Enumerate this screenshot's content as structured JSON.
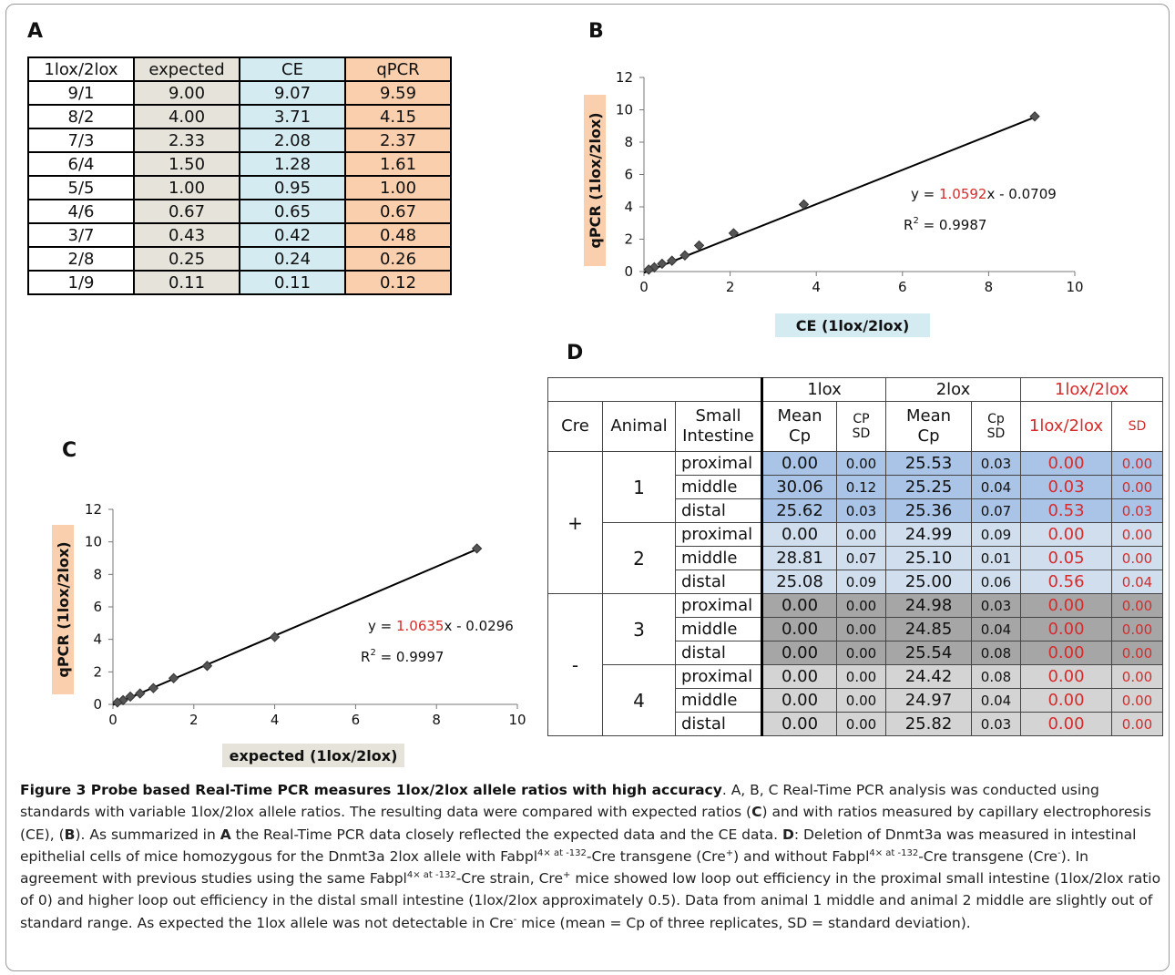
{
  "panels": {
    "a": "A",
    "b": "B",
    "c": "C",
    "d": "D"
  },
  "table_a": {
    "headers": [
      "1lox/2lox",
      "expected",
      "CE",
      "qPCR"
    ],
    "rows": [
      [
        "9/1",
        "9.00",
        "9.07",
        "9.59"
      ],
      [
        "8/2",
        "4.00",
        "3.71",
        "4.15"
      ],
      [
        "7/3",
        "2.33",
        "2.08",
        "2.37"
      ],
      [
        "6/4",
        "1.50",
        "1.28",
        "1.61"
      ],
      [
        "5/5",
        "1.00",
        "0.95",
        "1.00"
      ],
      [
        "4/6",
        "0.67",
        "0.65",
        "0.67"
      ],
      [
        "3/7",
        "0.43",
        "0.42",
        "0.48"
      ],
      [
        "2/8",
        "0.25",
        "0.24",
        "0.26"
      ],
      [
        "1/9",
        "0.11",
        "0.11",
        "0.12"
      ]
    ]
  },
  "chart_data": [
    {
      "type": "scatter",
      "panel": "B",
      "xlabel": "CE (1lox/2lox)",
      "ylabel": "qPCR (1lox/2lox)",
      "xlim": [
        0,
        10
      ],
      "ylim": [
        0,
        12
      ],
      "xticks": [
        "0",
        "2",
        "4",
        "6",
        "8",
        "10"
      ],
      "yticks": [
        "0",
        "2",
        "4",
        "6",
        "8",
        "10",
        "12"
      ],
      "x": [
        9.07,
        3.71,
        2.08,
        1.28,
        0.95,
        0.65,
        0.42,
        0.24,
        0.11
      ],
      "y": [
        9.59,
        4.15,
        2.37,
        1.61,
        1.0,
        0.67,
        0.48,
        0.26,
        0.12
      ],
      "trendline": {
        "slope": 1.0592,
        "intercept": -0.0709
      },
      "equation": {
        "prefix": "y = ",
        "slope": "1.0592",
        "suffix": "x - 0.0709",
        "r2_label": "R",
        "r2_value": " = 0.9987"
      },
      "xlabel_bg": "#d5ebf2",
      "ylabel_bg": "#f9cfae"
    },
    {
      "type": "scatter",
      "panel": "C",
      "xlabel": "expected (1lox/2lox)",
      "ylabel": "qPCR (1lox/2lox)",
      "xlim": [
        0,
        10
      ],
      "ylim": [
        0,
        12
      ],
      "xticks": [
        "0",
        "2",
        "4",
        "6",
        "8",
        "10"
      ],
      "yticks": [
        "0",
        "2",
        "4",
        "6",
        "8",
        "10",
        "12"
      ],
      "x": [
        9.0,
        4.0,
        2.33,
        1.5,
        1.0,
        0.67,
        0.43,
        0.25,
        0.11
      ],
      "y": [
        9.59,
        4.15,
        2.37,
        1.61,
        1.0,
        0.67,
        0.48,
        0.26,
        0.12
      ],
      "trendline": {
        "slope": 1.0635,
        "intercept": -0.0296
      },
      "equation": {
        "prefix": "y = ",
        "slope": "1.0635",
        "suffix": "x - 0.0296",
        "r2_label": "R",
        "r2_value": " = 0.9997"
      },
      "xlabel_bg": "#e6e4da",
      "ylabel_bg": "#f9cfae"
    }
  ],
  "table_d": {
    "group_headers": {
      "lox1": "1lox",
      "lox2": "2lox",
      "ratio": "1lox/2lox"
    },
    "col_headers": {
      "cre": "Cre",
      "animal": "Animal",
      "intestine_1": "Small",
      "intestine_2": "Intestine",
      "mean1_a": "Mean",
      "mean1_b": "Cp",
      "sd1_a": "CP",
      "sd1_b": "SD",
      "mean2_a": "Mean",
      "mean2_b": "Cp",
      "sd2_a": "Cp",
      "sd2_b": "SD",
      "ratio": "1lox/2lox",
      "ratio_sd": "SD"
    },
    "cre_groups": [
      "+",
      "-"
    ],
    "animals": [
      "1",
      "2",
      "3",
      "4"
    ],
    "rows": [
      {
        "segment": "proximal",
        "mean1": "0.00",
        "sd1": "0.00",
        "mean2": "25.53",
        "sd2": "0.03",
        "ratio": "0.00",
        "ratio_sd": "0.00"
      },
      {
        "segment": "middle",
        "mean1": "30.06",
        "sd1": "0.12",
        "mean2": "25.25",
        "sd2": "0.04",
        "ratio": "0.03",
        "ratio_sd": "0.00"
      },
      {
        "segment": "distal",
        "mean1": "25.62",
        "sd1": "0.03",
        "mean2": "25.36",
        "sd2": "0.07",
        "ratio": "0.53",
        "ratio_sd": "0.03"
      },
      {
        "segment": "proximal",
        "mean1": "0.00",
        "sd1": "0.00",
        "mean2": "24.99",
        "sd2": "0.09",
        "ratio": "0.00",
        "ratio_sd": "0.00"
      },
      {
        "segment": "middle",
        "mean1": "28.81",
        "sd1": "0.07",
        "mean2": "25.10",
        "sd2": "0.01",
        "ratio": "0.05",
        "ratio_sd": "0.00"
      },
      {
        "segment": "distal",
        "mean1": "25.08",
        "sd1": "0.09",
        "mean2": "25.00",
        "sd2": "0.06",
        "ratio": "0.56",
        "ratio_sd": "0.04"
      },
      {
        "segment": "proximal",
        "mean1": "0.00",
        "sd1": "0.00",
        "mean2": "24.98",
        "sd2": "0.03",
        "ratio": "0.00",
        "ratio_sd": "0.00"
      },
      {
        "segment": "middle",
        "mean1": "0.00",
        "sd1": "0.00",
        "mean2": "24.85",
        "sd2": "0.04",
        "ratio": "0.00",
        "ratio_sd": "0.00"
      },
      {
        "segment": "distal",
        "mean1": "0.00",
        "sd1": "0.00",
        "mean2": "25.54",
        "sd2": "0.08",
        "ratio": "0.00",
        "ratio_sd": "0.00"
      },
      {
        "segment": "proximal",
        "mean1": "0.00",
        "sd1": "0.00",
        "mean2": "24.42",
        "sd2": "0.08",
        "ratio": "0.00",
        "ratio_sd": "0.00"
      },
      {
        "segment": "middle",
        "mean1": "0.00",
        "sd1": "0.00",
        "mean2": "24.97",
        "sd2": "0.04",
        "ratio": "0.00",
        "ratio_sd": "0.00"
      },
      {
        "segment": "distal",
        "mean1": "0.00",
        "sd1": "0.00",
        "mean2": "25.82",
        "sd2": "0.03",
        "ratio": "0.00",
        "ratio_sd": "0.00"
      }
    ],
    "colors": {
      "animal1": "#a9c4e7",
      "animal2": "#d0deee",
      "animal3": "#a6a6a6",
      "animal4": "#d4d4d4",
      "ratio_text": "#d52b2b"
    }
  },
  "caption": {
    "title": "Figure 3 Probe based Real-Time PCR measures 1lox/2lox allele ratios with high accuracy",
    "s1": ". A, B, C Real-Time PCR analysis was conducted using standards with variable 1lox/2lox allele ratios. The resulting data were compared with expected ratios (",
    "c": "C",
    "s2": ") and with ratios measured by capillary electrophoresis (CE), (",
    "b": "B",
    "s3": "). As summarized in ",
    "a": "A",
    "s4": " the Real-Time PCR data closely reflected the expected data and the CE data. ",
    "d": "D",
    "s5": ": Deletion of Dnmt3a was measured in intestinal epithelial cells of mice homozygous for the Dnmt3a 2lox allele with Fabpl",
    "sup_fabpl": "4× at -132",
    "s6": "-Cre transgene (Cre",
    "sup_plus": "+",
    "s7": ") and without Fabpl",
    "s8": "-Cre transgene (Cre",
    "sup_minus": "-",
    "s9": "). In agreement with previous studies using the same Fabpl",
    "s10": "-Cre strain, Cre",
    "s11": " mice showed low loop out efficiency in the proximal small intestine (1lox/2lox ratio of 0) and higher loop out efficiency in the distal small intestine (1lox/2lox approximately 0.5). Data from animal 1 middle and animal 2 middle are slightly out of standard range. As expected the 1lox allele was not detectable in Cre",
    "s12": " mice (mean = Cp of three replicates, SD = standard deviation)."
  }
}
